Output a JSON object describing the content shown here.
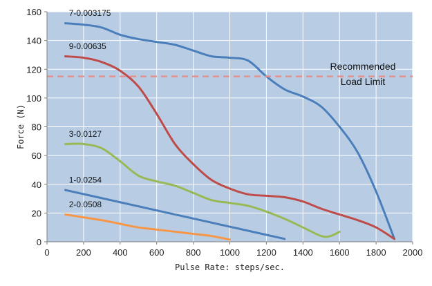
{
  "chart_data": {
    "type": "line",
    "title": "",
    "xlabel": "Pulse Rate: steps/sec.",
    "ylabel": "Force (N)",
    "xlim": [
      0,
      2000
    ],
    "ylim": [
      0,
      160
    ],
    "xticks": [
      0,
      200,
      400,
      600,
      800,
      1000,
      1200,
      1400,
      1600,
      1800,
      2000
    ],
    "yticks": [
      0,
      20,
      40,
      60,
      80,
      100,
      120,
      140,
      160
    ],
    "grid": true,
    "legend": "none",
    "plot_background": "#b8cce4",
    "grid_color": "#ffffff",
    "series": [
      {
        "name": "7-0.003175",
        "color": "#4a7ebb",
        "x": [
          100,
          200,
          300,
          400,
          500,
          600,
          700,
          800,
          900,
          1000,
          1100,
          1200,
          1300,
          1400,
          1500,
          1600,
          1700,
          1800,
          1900
        ],
        "y": [
          152,
          151,
          149,
          144,
          141,
          139,
          137,
          133,
          129,
          128,
          126,
          115,
          106,
          101,
          94,
          80,
          62,
          35,
          2
        ]
      },
      {
        "name": "9-0.00635",
        "color": "#be4b48",
        "x": [
          100,
          200,
          300,
          400,
          500,
          600,
          700,
          800,
          900,
          1000,
          1100,
          1200,
          1300,
          1400,
          1500,
          1600,
          1700,
          1800,
          1900
        ],
        "y": [
          129,
          128,
          125,
          119,
          108,
          89,
          68,
          54,
          43,
          37,
          33,
          32,
          31,
          28,
          23,
          19,
          15,
          10,
          2
        ]
      },
      {
        "name": "3-0.0127",
        "color": "#98b954",
        "x": [
          100,
          200,
          300,
          400,
          500,
          600,
          700,
          800,
          900,
          1000,
          1100,
          1200,
          1300,
          1400,
          1500,
          1550,
          1600
        ],
        "y": [
          68,
          68,
          65,
          56,
          46,
          42,
          39,
          34,
          29,
          27,
          25,
          21,
          16,
          10,
          4,
          4,
          7
        ]
      },
      {
        "name": "1-0.0254",
        "color": "#4a7ebb",
        "x": [
          100,
          1300
        ],
        "y": [
          36,
          2
        ]
      },
      {
        "name": "2-0.0508",
        "color": "#f79646",
        "x": [
          100,
          200,
          300,
          400,
          500,
          600,
          700,
          800,
          900,
          1000
        ],
        "y": [
          19,
          17,
          15,
          12.5,
          10,
          8.5,
          7,
          5.5,
          4,
          1.5
        ]
      }
    ],
    "reference_line": {
      "y": 115,
      "color": "#e6908d",
      "label_line1": "Recommended",
      "label_line2": "Load Limit"
    },
    "series_labels": [
      {
        "text": "7-0.003175",
        "x": 120,
        "y": 157
      },
      {
        "text": "9-0.00635",
        "x": 120,
        "y": 134
      },
      {
        "text": "3-0.0127",
        "x": 120,
        "y": 73
      },
      {
        "text": "1-0.0254",
        "x": 120,
        "y": 41
      },
      {
        "text": "2-0.0508",
        "x": 120,
        "y": 24
      }
    ]
  }
}
